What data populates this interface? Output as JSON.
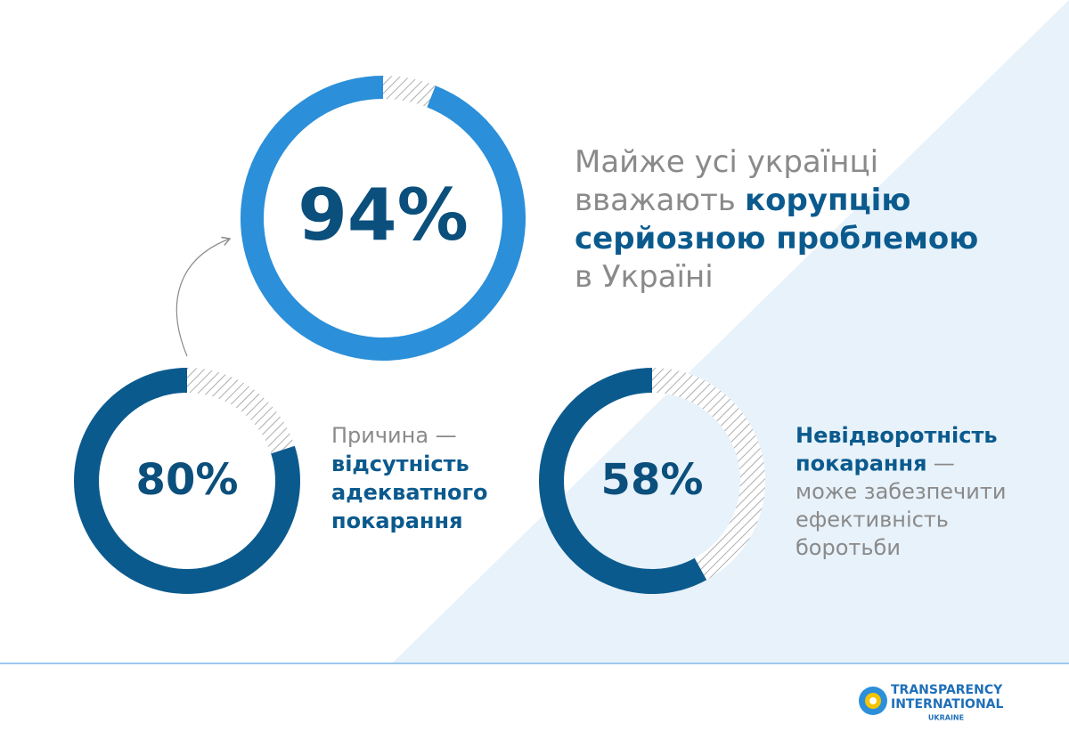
{
  "chart_data": [
    {
      "type": "donut",
      "values": [
        94
      ],
      "value_labels": [
        "94%"
      ],
      "color": "#2b8fd9",
      "caption": [
        [
          {
            "text": "Майже усі українці",
            "bold": false
          }
        ],
        [
          {
            "text": "вважають",
            "bold": false
          },
          {
            "text": "корупцію",
            "bold": true
          }
        ],
        [
          {
            "text": "серйозною проблемою",
            "bold": true
          }
        ],
        [
          {
            "text": "в Україні",
            "bold": false
          }
        ]
      ]
    },
    {
      "type": "donut",
      "values": [
        80
      ],
      "value_labels": [
        "80%"
      ],
      "color": "#0b5a8e",
      "caption": [
        [
          {
            "text": "Причина —",
            "bold": false
          }
        ],
        [
          {
            "text": "відсутність",
            "bold": true
          }
        ],
        [
          {
            "text": "адекватного",
            "bold": true
          }
        ],
        [
          {
            "text": "покарання",
            "bold": true
          }
        ]
      ]
    },
    {
      "type": "donut",
      "values": [
        58
      ],
      "value_labels": [
        "58%"
      ],
      "color": "#0b5a8e",
      "caption": [
        [
          {
            "text": "Невідворотність",
            "bold": true
          }
        ],
        [
          {
            "text": "покарання",
            "bold": true
          },
          {
            "text": "—",
            "bold": false
          }
        ],
        [
          {
            "text": "може забезпечити",
            "bold": false
          }
        ],
        [
          {
            "text": "ефективність",
            "bold": false
          }
        ],
        [
          {
            "text": "боротьби",
            "bold": false
          }
        ]
      ]
    }
  ],
  "logo": {
    "lines": [
      "TRANSPARENCY",
      "INTERNATIONAL",
      "UKRAINE"
    ]
  }
}
